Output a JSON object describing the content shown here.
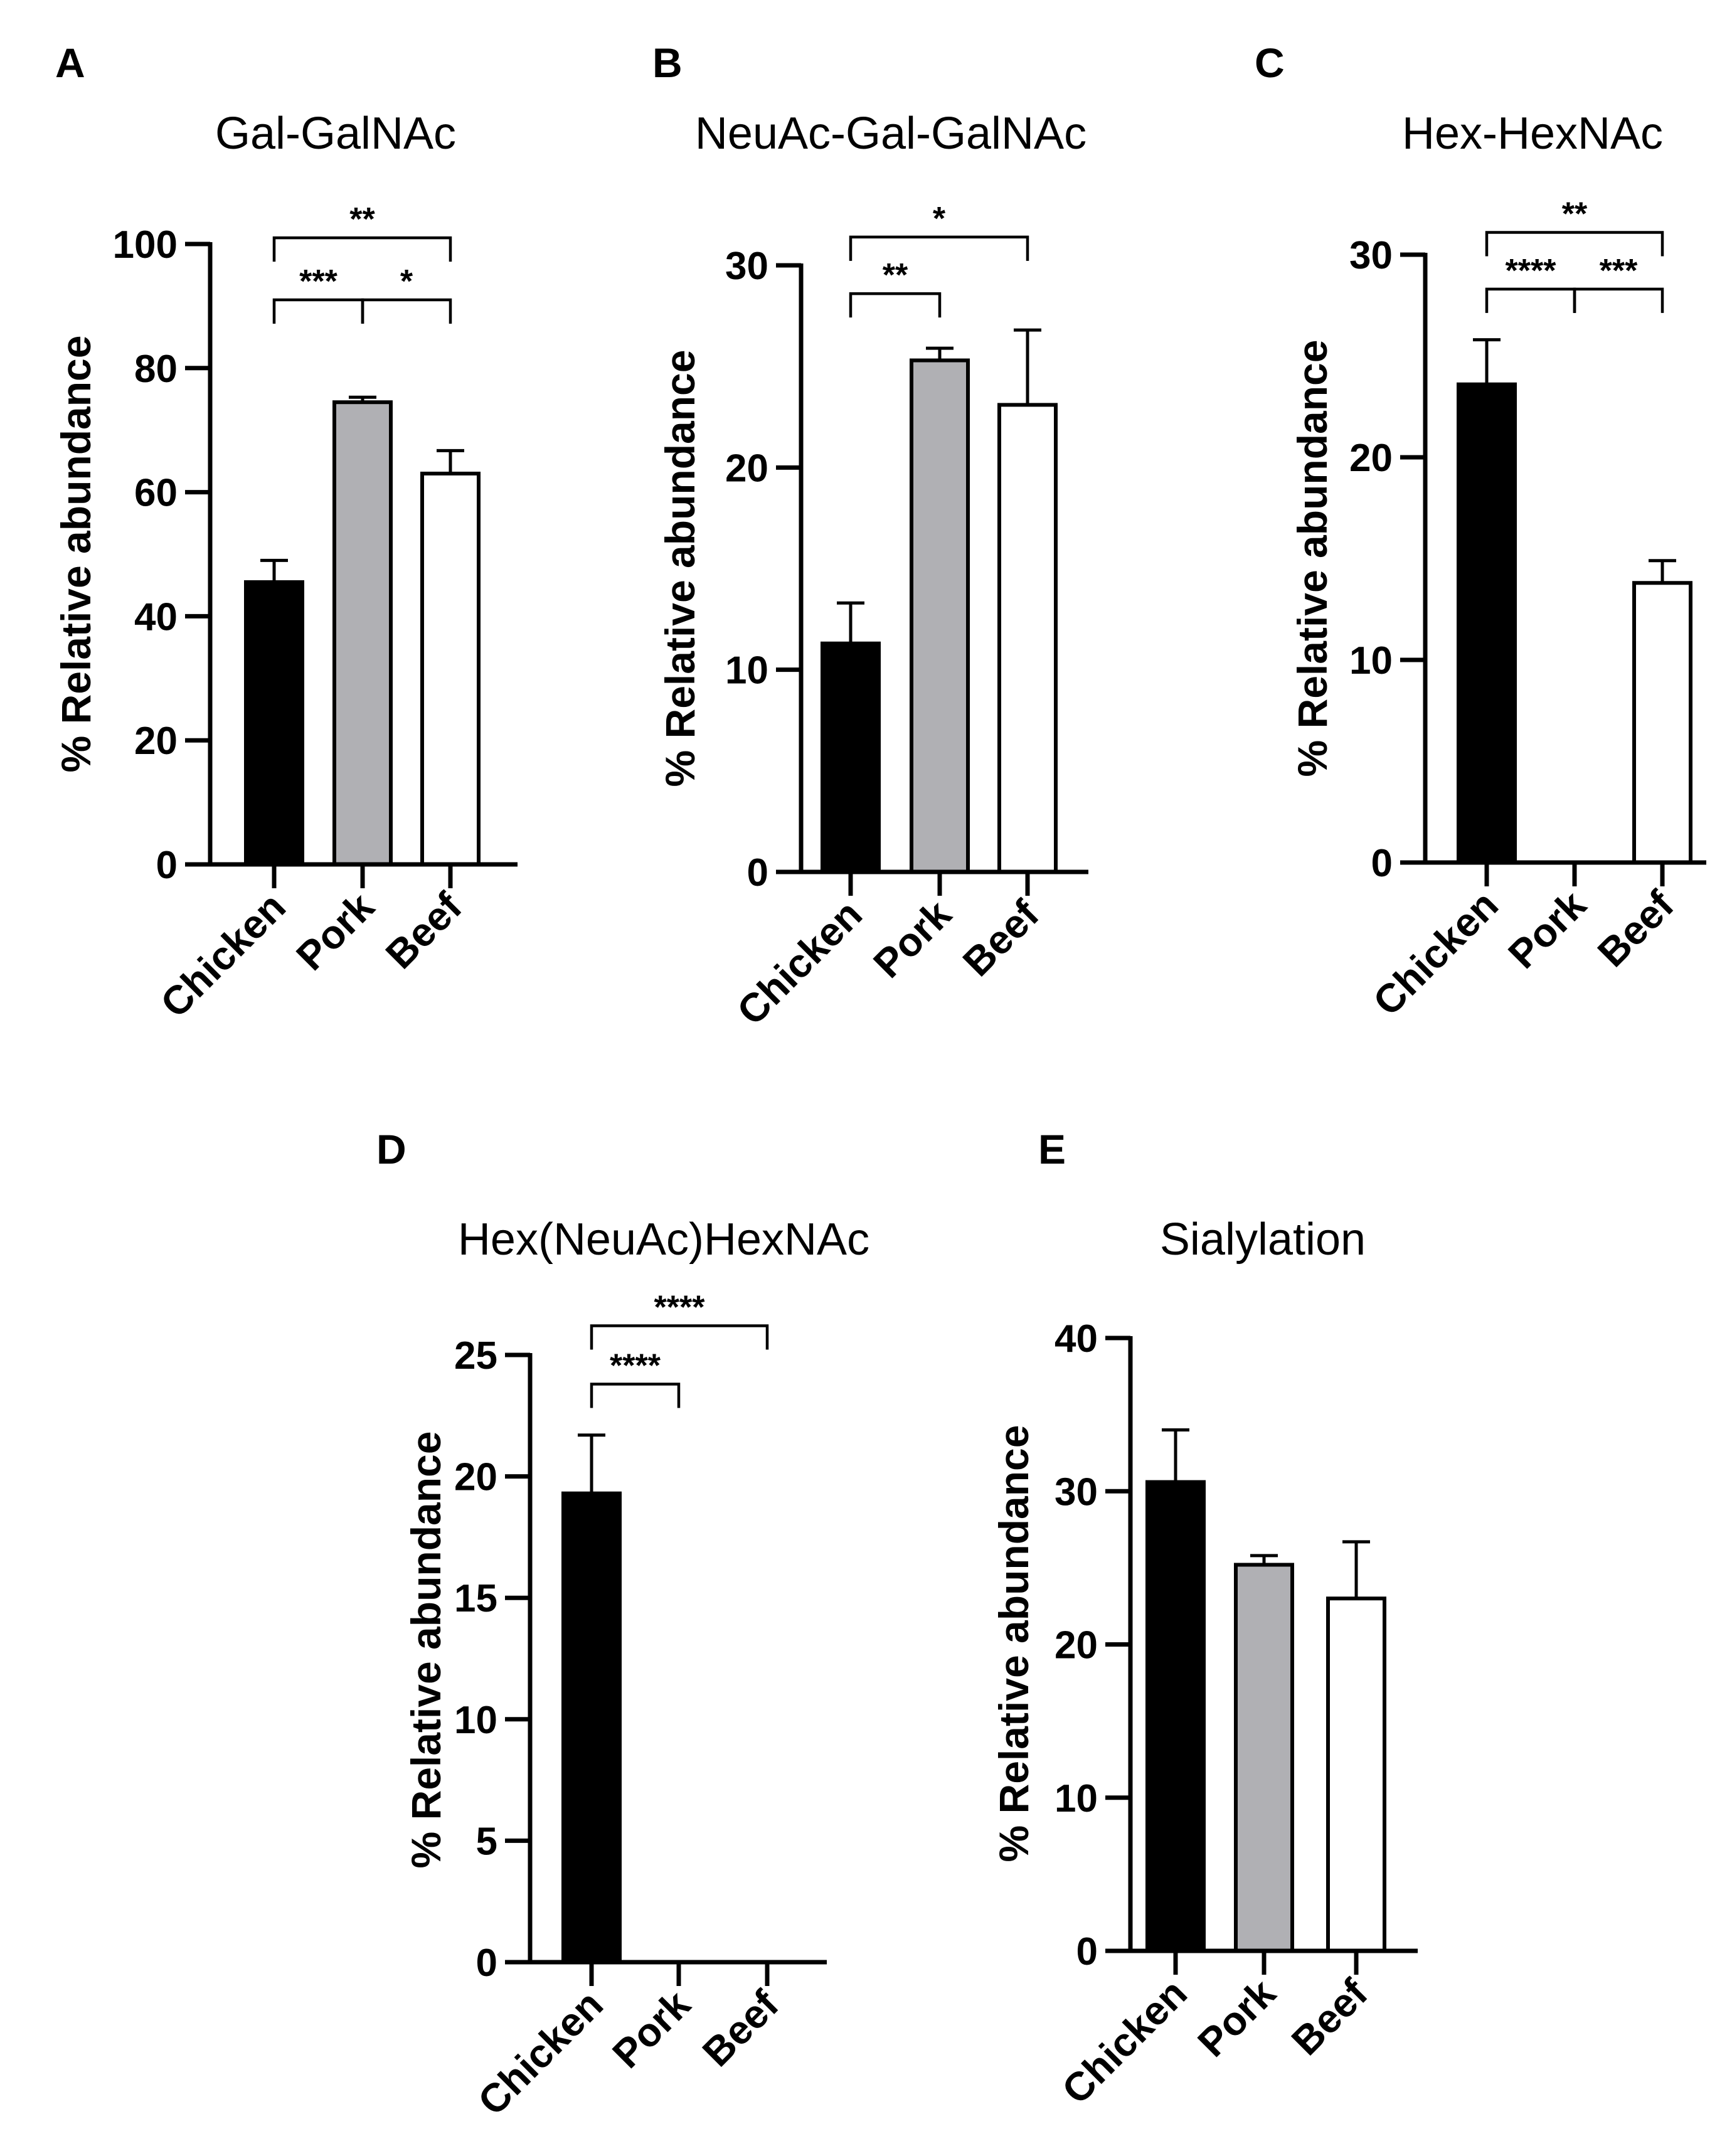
{
  "chart_data": [
    {
      "letter": "A",
      "type": "bar",
      "title": "Gal-GalNAc",
      "ylabel": "% Relative abundance",
      "ylim": [
        0,
        100
      ],
      "yticks": [
        0,
        20,
        40,
        60,
        80,
        100
      ],
      "categories": [
        "Chicken",
        "Pork",
        "Beef"
      ],
      "values": [
        45.5,
        74.5,
        63
      ],
      "errors": [
        3.5,
        0.8,
        3.7
      ],
      "colors": [
        "#000000",
        "#b0b0b4",
        "#ffffff"
      ],
      "significance": [
        {
          "from": 0,
          "to": 1,
          "label": "***",
          "y": 91
        },
        {
          "from": 1,
          "to": 2,
          "label": "*",
          "y": 91
        },
        {
          "from": 0,
          "to": 2,
          "label": "**",
          "y": 101
        }
      ]
    },
    {
      "letter": "B",
      "type": "bar",
      "title": "NeuAc-Gal-GalNAc",
      "ylabel": "% Relative abundance",
      "ylim": [
        0,
        30
      ],
      "yticks": [
        0,
        10,
        20,
        30
      ],
      "categories": [
        "Chicken",
        "Pork",
        "Beef"
      ],
      "values": [
        11.3,
        25.3,
        23.1
      ],
      "errors": [
        2.0,
        0.6,
        3.7
      ],
      "colors": [
        "#000000",
        "#b0b0b4",
        "#ffffff"
      ],
      "significance": [
        {
          "from": 0,
          "to": 1,
          "label": "**",
          "y": 28.6
        },
        {
          "from": 0,
          "to": 2,
          "label": "*",
          "y": 31.4
        }
      ]
    },
    {
      "letter": "C",
      "type": "bar",
      "title": "Hex-HexNAc",
      "ylabel": "% Relative abundance",
      "ylim": [
        0,
        30
      ],
      "yticks": [
        0,
        10,
        20,
        30
      ],
      "categories": [
        "Chicken",
        "Pork",
        "Beef"
      ],
      "values": [
        23.6,
        0,
        13.8
      ],
      "errors": [
        2.2,
        0,
        1.1
      ],
      "colors": [
        "#000000",
        "#b0b0b4",
        "#ffffff"
      ],
      "significance": [
        {
          "from": 0,
          "to": 1,
          "label": "****",
          "y": 28.3
        },
        {
          "from": 1,
          "to": 2,
          "label": "***",
          "y": 28.3
        },
        {
          "from": 0,
          "to": 2,
          "label": "**",
          "y": 31.1
        }
      ]
    },
    {
      "letter": "D",
      "type": "bar",
      "title": "Hex(NeuAc)HexNAc",
      "ylabel": "% Relative abundance",
      "ylim": [
        0,
        25
      ],
      "yticks": [
        0,
        5,
        10,
        15,
        20,
        25
      ],
      "categories": [
        "Chicken",
        "Pork",
        "Beef"
      ],
      "values": [
        19.3,
        0,
        0
      ],
      "errors": [
        2.4,
        0,
        0
      ],
      "colors": [
        "#000000",
        "#b0b0b4",
        "#ffffff"
      ],
      "significance": [
        {
          "from": 0,
          "to": 1,
          "label": "****",
          "y": 23.8
        },
        {
          "from": 0,
          "to": 2,
          "label": "****",
          "y": 26.2
        }
      ]
    },
    {
      "letter": "E",
      "type": "bar",
      "title": "Sialylation",
      "ylabel": "% Relative abundance",
      "ylim": [
        0,
        40
      ],
      "yticks": [
        0,
        10,
        20,
        30,
        40
      ],
      "categories": [
        "Chicken",
        "Pork",
        "Beef"
      ],
      "values": [
        30.6,
        25.2,
        23.0
      ],
      "errors": [
        3.4,
        0.6,
        3.7
      ],
      "colors": [
        "#000000",
        "#b0b0b4",
        "#ffffff"
      ],
      "significance": []
    }
  ]
}
